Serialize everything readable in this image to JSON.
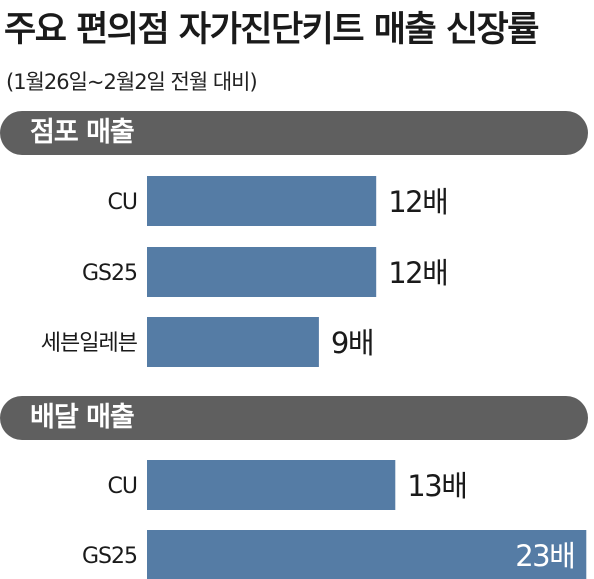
{
  "title": "주요 편의점 자가진단키트 매출 신장률",
  "subtitle": "(1월26일~2월2일 전월 대비)",
  "unit": "배",
  "colors": {
    "bar": "#557ca5",
    "section": "#5f5f5f"
  },
  "chart_data": [
    {
      "type": "bar",
      "orientation": "horizontal",
      "title": "점포 매출",
      "categories": [
        "CU",
        "GS25",
        "세븐일레븐"
      ],
      "values": [
        12,
        12,
        9
      ],
      "value_labels": [
        "12배",
        "12배",
        "9배"
      ]
    },
    {
      "type": "bar",
      "orientation": "horizontal",
      "title": "배달 매출",
      "categories": [
        "CU",
        "GS25"
      ],
      "values": [
        13,
        23
      ],
      "value_labels": [
        "13배",
        "23배"
      ]
    }
  ]
}
